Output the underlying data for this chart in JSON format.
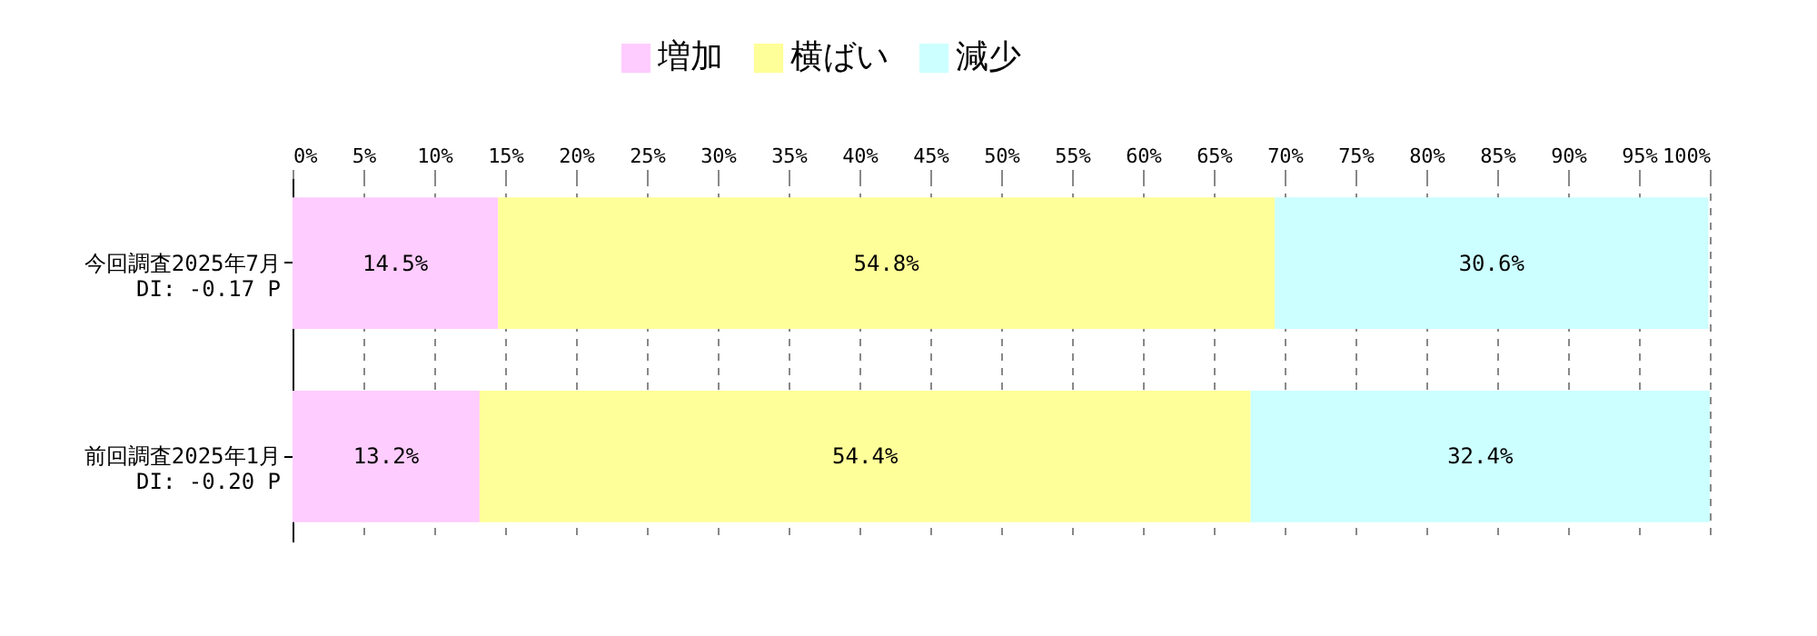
{
  "chart_data": {
    "type": "bar",
    "orientation": "horizontal",
    "stacked": true,
    "categories": [
      "今回調査2025年7月\nDI: -0.17 P",
      "前回調査2025年1月\nDI: -0.20 P"
    ],
    "series": [
      {
        "name": "増加",
        "color": "#ffccff",
        "values": [
          14.5,
          13.2
        ],
        "value_labels": [
          "14.5%",
          "13.2%"
        ]
      },
      {
        "name": "横ばい",
        "color": "#ffff99",
        "values": [
          54.8,
          54.4
        ],
        "value_labels": [
          "54.8%",
          "54.4%"
        ]
      },
      {
        "name": "減少",
        "color": "#ccffff",
        "values": [
          30.6,
          32.4
        ],
        "value_labels": [
          "30.6%",
          "32.4%"
        ]
      }
    ],
    "xlim": [
      0,
      100
    ],
    "xticks": [
      {
        "value": 0,
        "label": "0%"
      },
      {
        "value": 5,
        "label": "5%"
      },
      {
        "value": 10,
        "label": "10%"
      },
      {
        "value": 15,
        "label": "15%"
      },
      {
        "value": 20,
        "label": "20%"
      },
      {
        "value": 25,
        "label": "25%"
      },
      {
        "value": 30,
        "label": "30%"
      },
      {
        "value": 35,
        "label": "35%"
      },
      {
        "value": 40,
        "label": "40%"
      },
      {
        "value": 45,
        "label": "45%"
      },
      {
        "value": 50,
        "label": "50%"
      },
      {
        "value": 55,
        "label": "55%"
      },
      {
        "value": 60,
        "label": "60%"
      },
      {
        "value": 65,
        "label": "65%"
      },
      {
        "value": 70,
        "label": "70%"
      },
      {
        "value": 75,
        "label": "75%"
      },
      {
        "value": 80,
        "label": "80%"
      },
      {
        "value": 85,
        "label": "85%"
      },
      {
        "value": 90,
        "label": "90%"
      },
      {
        "value": 95,
        "label": "95%"
      },
      {
        "value": 100,
        "label": "100%"
      }
    ],
    "grid": "x",
    "legend": "top"
  }
}
